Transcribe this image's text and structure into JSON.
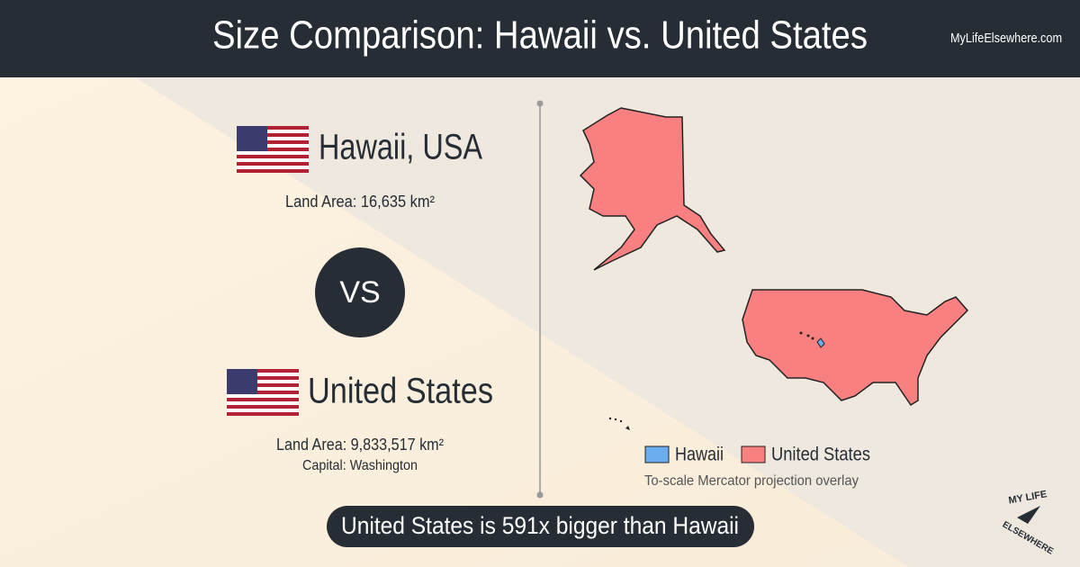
{
  "header": {
    "title": "Size Comparison: Hawaii vs. United States",
    "site": "MyLifeElsewhere.com"
  },
  "first": {
    "name": "Hawaii, USA",
    "land_area": "Land Area: 16,635 km²"
  },
  "versus": "VS",
  "second": {
    "name": "United States",
    "land_area": "Land Area: 9,833,517 km²",
    "capital": "Capital: Washington"
  },
  "legend": {
    "items": [
      "Hawaii",
      "United States"
    ],
    "note": "To-scale Mercator projection overlay"
  },
  "summary": "United States is 591x bigger than Hawaii",
  "logo": {
    "top": "MY LIFE",
    "bottom": "ELSEWHERE"
  }
}
